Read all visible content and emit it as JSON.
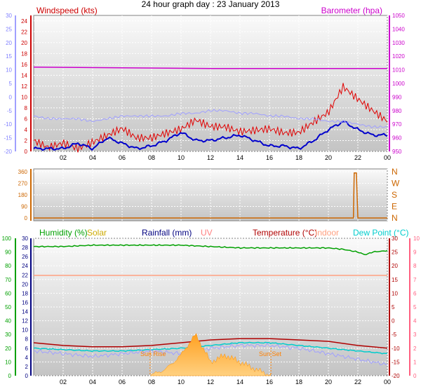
{
  "title": "24 hour graph day : 23 January 2013",
  "x_ticks": [
    "02",
    "04",
    "06",
    "08",
    "10",
    "12",
    "14",
    "16",
    "18",
    "20",
    "22",
    "00"
  ],
  "colors": {
    "wind": "#e00000",
    "wind_avg": "#0000cc",
    "temp_light": "#a0a0ff",
    "baro": "#cc00cc",
    "direction": "#cc6600",
    "humidity": "#00a000",
    "solar": "#ccaa00",
    "rainfall": "#000080",
    "uv": "#ff8080",
    "temperature": "#b00000",
    "indoor": "#ffa080",
    "dewpoint": "#00cccc",
    "sun": "#ff8000",
    "panel_top": "#fafafa",
    "panel_bottom": "#c4c4c4"
  },
  "chart_data": [
    {
      "type": "line",
      "panel": "wind-baro",
      "labels": {
        "left": "Windspeed (kts)",
        "right": "Barometer (hpa)"
      },
      "left_axis_inner": {
        "ticks": [
          "24",
          "22",
          "20",
          "18",
          "16",
          "14",
          "12",
          "10",
          "8",
          "6",
          "4",
          "2",
          "0"
        ],
        "ylim": [
          0,
          25
        ]
      },
      "left_axis_outer": {
        "ticks": [
          "30",
          "25",
          "20",
          "15",
          "10",
          "5",
          "0",
          "-5",
          "-10",
          "-15",
          "-20"
        ],
        "ylim": [
          -20,
          30
        ]
      },
      "right_axis": {
        "ticks": [
          "1050",
          "1040",
          "1030",
          "1020",
          "1010",
          "1000",
          "990",
          "980",
          "970",
          "960",
          "950"
        ],
        "ylim": [
          950,
          1050
        ]
      },
      "series": [
        {
          "key": "wind",
          "x": [
            0,
            1,
            2,
            3,
            4,
            5,
            6,
            7,
            8,
            9,
            10,
            11,
            12,
            13,
            14,
            15,
            16,
            17,
            18,
            19,
            20,
            21,
            22,
            23,
            24
          ],
          "values": [
            2,
            1,
            2,
            1,
            2,
            3,
            4,
            2,
            2,
            3,
            4,
            6,
            5,
            5,
            4,
            4,
            4,
            3,
            3,
            5,
            7,
            12,
            10,
            8,
            6
          ]
        },
        {
          "key": "wind_avg",
          "x": [
            0,
            1,
            2,
            3,
            4,
            5,
            6,
            7,
            8,
            9,
            10,
            11,
            12,
            13,
            14,
            15,
            16,
            17,
            18,
            19,
            20,
            21,
            22,
            23,
            24
          ],
          "values": [
            0.5,
            0.5,
            0.5,
            1.5,
            0.5,
            2.5,
            1.5,
            0.5,
            1,
            2,
            3.5,
            2,
            2,
            2.5,
            3,
            2,
            1,
            1,
            0.5,
            2,
            4,
            5.5,
            4,
            3,
            3
          ]
        },
        {
          "key": "temp_light",
          "x": [
            0,
            1,
            2,
            3,
            4,
            5,
            6,
            7,
            8,
            9,
            10,
            11,
            12,
            13,
            14,
            15,
            16,
            17,
            18,
            19,
            20,
            21,
            22,
            23,
            24
          ],
          "values": [
            -7,
            -8,
            -8,
            -8,
            -9,
            -8,
            -7,
            -7,
            -7,
            -7,
            -6,
            -6,
            -5,
            -5,
            -6,
            -6,
            -7,
            -7,
            -8,
            -8,
            -9,
            -9,
            -10,
            -11,
            -11
          ]
        },
        {
          "key": "baro",
          "x": [
            0,
            12,
            24
          ],
          "values": [
            1012,
            1011,
            1011
          ]
        }
      ]
    },
    {
      "type": "line",
      "panel": "direction",
      "left_axis": {
        "ticks": [
          "360",
          "270",
          "180",
          "90",
          "0"
        ],
        "ylim": [
          0,
          360
        ]
      },
      "right_axis": {
        "ticks": [
          "N",
          "W",
          "S",
          "E",
          "N"
        ]
      },
      "series": [
        {
          "key": "direction",
          "x": [
            0,
            21.7,
            21.75,
            21.9,
            22.0,
            24
          ],
          "values": [
            0,
            0,
            350,
            350,
            0,
            0
          ]
        }
      ]
    },
    {
      "type": "line",
      "panel": "temperature-humidity",
      "labels": [
        "Humidity (%)",
        "Solar",
        "Rainfall (mm)",
        "UV",
        "Temperature (°C)",
        "Indoor",
        "Dew Point (°C)"
      ],
      "axis_humidity": {
        "ticks": [
          "100",
          "90",
          "80",
          "70",
          "60",
          "50",
          "40",
          "30",
          "20",
          "10",
          "0"
        ],
        "ylim": [
          0,
          100
        ]
      },
      "axis_rain": {
        "ticks": [
          "30",
          "28",
          "26",
          "24",
          "22",
          "20",
          "18",
          "16",
          "14",
          "12",
          "10",
          "8",
          "6",
          "4",
          "2",
          "0"
        ],
        "ylim": [
          0,
          30
        ]
      },
      "axis_temp": {
        "ticks": [
          "30",
          "25",
          "20",
          "15",
          "10",
          "5",
          "0",
          "-5",
          "-10",
          "-15",
          "-20"
        ],
        "ylim": [
          -20,
          30
        ]
      },
      "axis_uv": {
        "ticks": [
          "10",
          "9",
          "8",
          "7",
          "6",
          "5",
          "4",
          "3",
          "2",
          "1",
          "0"
        ],
        "ylim": [
          0,
          10
        ]
      },
      "annotations": [
        "Sun Rise",
        "Sun Set"
      ],
      "sunrise_x": 7.9,
      "sunset_x": 16.1,
      "series": [
        {
          "key": "humidity",
          "x": [
            0,
            2,
            4,
            6,
            8,
            10,
            12,
            14,
            16,
            18,
            20,
            21,
            22,
            22.5,
            23,
            24
          ],
          "values": [
            94,
            94,
            95,
            95,
            95,
            95,
            94,
            93,
            93,
            93,
            93,
            92,
            90,
            88,
            90,
            91
          ]
        },
        {
          "key": "temperature",
          "x": [
            0,
            2,
            4,
            6,
            8,
            10,
            12,
            14,
            16,
            18,
            20,
            22,
            24
          ],
          "values": [
            -8,
            -9,
            -9.5,
            -9.5,
            -9,
            -8,
            -7,
            -6.5,
            -6.5,
            -7,
            -7.5,
            -9,
            -10
          ]
        },
        {
          "key": "dewpoint",
          "x": [
            0,
            2,
            4,
            6,
            8,
            10,
            12,
            14,
            16,
            18,
            20,
            22,
            24
          ],
          "values": [
            -10,
            -10.5,
            -11,
            -11,
            -10.5,
            -10,
            -9,
            -8,
            -8,
            -9,
            -10,
            -11,
            -12
          ]
        },
        {
          "key": "temp_light",
          "x": [
            0,
            2,
            4,
            6,
            8,
            10,
            12,
            14,
            16,
            18,
            20,
            22,
            24
          ],
          "values": [
            -11,
            -12,
            -13,
            -12,
            -11,
            -12,
            -10,
            -9,
            -9,
            -10,
            -12,
            -14,
            -16
          ]
        },
        {
          "key": "indoor",
          "x": [
            0,
            12,
            24
          ],
          "values": [
            16.5,
            16.5,
            16.5
          ]
        },
        {
          "key": "solar",
          "x": [
            7.9,
            9,
            10,
            10.5,
            11,
            11.5,
            12,
            13,
            14,
            15,
            16.1
          ],
          "values": [
            0,
            0.5,
            1.5,
            2.3,
            3,
            2,
            1,
            1.5,
            1,
            0.5,
            0
          ]
        }
      ]
    }
  ]
}
